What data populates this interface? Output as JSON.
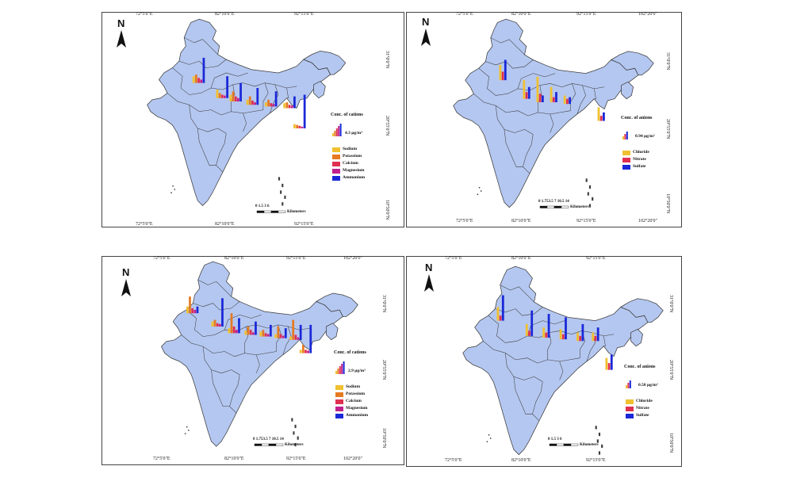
{
  "colors": {
    "land": "#b4c7f0",
    "border": "#3c3c3c",
    "sodium": "#f0c030",
    "potassium": "#e67a20",
    "calcium": "#e03050",
    "magnesium": "#c0208c",
    "ammonium": "#1a28d8",
    "chloride": "#f0c030",
    "nitrate": "#e03050",
    "sulfate": "#1a28d8"
  },
  "panels": [
    {
      "id": "cations-a",
      "top_ticks": [
        "72°5'0\"E",
        "82°10'0\"E",
        "92°15'0\"E"
      ],
      "bottom_ticks": [
        "72°5'0\"E",
        "82°10'0\"E",
        "92°15'0\"E"
      ],
      "right_ticks": [
        "31°0'0\"N",
        "20°55'0\"N",
        "10°50'0\"N"
      ],
      "north": "N",
      "legend_title": "Conc. of cations",
      "legend_value": "4.3 μg/m³",
      "legend_items": [
        {
          "label": "Sodium",
          "color_key": "sodium"
        },
        {
          "label": "Potassium",
          "color_key": "potassium"
        },
        {
          "label": "Calcium",
          "color_key": "calcium"
        },
        {
          "label": "Magnesium",
          "color_key": "magnesium"
        },
        {
          "label": "Ammonium",
          "color_key": "ammonium"
        }
      ],
      "scale_numbers": "0 1.5 3     6",
      "scale_unit": "Kilometers"
    },
    {
      "id": "anions-a",
      "top_ticks": [
        "72°5'0\"E",
        "82°10'0\"E",
        "92°15'0\"E",
        "102°20'0\""
      ],
      "bottom_ticks": [
        "72°5'0\"E",
        "82°10'0\"E",
        "92°15'0\"E",
        "102°20'0\""
      ],
      "right_ticks": [
        "31°0'0\"N",
        "20°55'0\"N",
        "10°50'0\"N"
      ],
      "north": "N",
      "legend_title": "Conc. of anions",
      "legend_value": "0.94 μg/m³",
      "legend_items": [
        {
          "label": "Chloride",
          "color_key": "chloride"
        },
        {
          "label": "Nitrate",
          "color_key": "nitrate"
        },
        {
          "label": "Sulfate",
          "color_key": "sulfate"
        }
      ],
      "scale_numbers": "0 1.753.5    7    10.5   14",
      "scale_unit": "Kilometers"
    },
    {
      "id": "cations-b",
      "top_ticks": [
        "72°5'0\"E",
        "82°10'0\"E",
        "92°15'0\"E",
        "102°20'0\""
      ],
      "bottom_ticks": [
        "72°5'0\"E",
        "82°10'0\"E",
        "92°15'0\"E",
        "102°20'0\""
      ],
      "right_ticks": [
        "31°0'0\"N",
        "20°55'0\"N",
        "10°50'0\"N"
      ],
      "north": "N",
      "legend_title": "Conc. of cations",
      "legend_value": "2.9 μg/m³",
      "legend_items": [
        {
          "label": "Sodium",
          "color_key": "sodium"
        },
        {
          "label": "Potassium",
          "color_key": "potassium"
        },
        {
          "label": "Calcium",
          "color_key": "calcium"
        },
        {
          "label": "Magnesium",
          "color_key": "magnesium"
        },
        {
          "label": "Ammonium",
          "color_key": "ammonium"
        }
      ],
      "scale_numbers": "0 1.753.5    7    10.5   14",
      "scale_unit": "Kilometers"
    },
    {
      "id": "anions-b",
      "top_ticks": [
        "72°5'0\"E",
        "82°10'0\"E",
        "92°15'0\"E"
      ],
      "bottom_ticks": [
        "72°5'0\"E",
        "82°10'0\"E",
        "92°15'0\"E"
      ],
      "right_ticks": [
        "31°0'0\"N",
        "20°55'0\"N",
        "10°50'0\"N"
      ],
      "north": "N",
      "legend_title": "Conc. of anions",
      "legend_value": "0.50 μg/m³",
      "legend_items": [
        {
          "label": "Chloride",
          "color_key": "chloride"
        },
        {
          "label": "Nitrate",
          "color_key": "nitrate"
        },
        {
          "label": "Sulfate",
          "color_key": "sulfate"
        }
      ],
      "scale_numbers": "0 1.5 3     6",
      "scale_unit": "Kilometers"
    }
  ]
}
